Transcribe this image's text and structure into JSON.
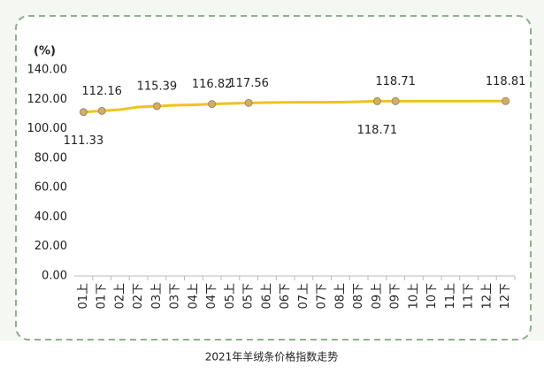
{
  "chart_data": {
    "type": "line",
    "caption": "2021年羊绒条价格指数走势",
    "y_label": "(%)",
    "categories": [
      "01上",
      "01下",
      "02上",
      "02下",
      "03上",
      "03下",
      "04上",
      "04下",
      "05上",
      "05下",
      "06上",
      "06下",
      "07上",
      "07下",
      "08上",
      "08下",
      "09上",
      "09下",
      "10上",
      "10下",
      "11上",
      "11下",
      "12上",
      "12下"
    ],
    "series": [
      {
        "name": "羊绒条价格指数",
        "color": "#f2c21b",
        "values": [
          111.33,
          112.16,
          113.0,
          114.8,
          115.39,
          116.0,
          116.3,
          116.82,
          117.2,
          117.56,
          117.8,
          117.9,
          118.0,
          118.0,
          118.1,
          118.4,
          118.71,
          118.71,
          118.75,
          118.75,
          118.78,
          118.78,
          118.8,
          118.81
        ],
        "value_labels": [
          "111.33",
          "112.16",
          null,
          null,
          "115.39",
          null,
          null,
          "116.82",
          null,
          "117.56",
          null,
          null,
          null,
          null,
          null,
          null,
          "118.71",
          "118.71",
          null,
          null,
          null,
          null,
          null,
          "118.81"
        ]
      }
    ],
    "ylim": [
      0,
      140
    ],
    "yticks": [
      {
        "value": 0,
        "label": "0.00"
      },
      {
        "value": 20,
        "label": "20.00"
      },
      {
        "value": 40,
        "label": "40.00"
      },
      {
        "value": 60,
        "label": "60.00"
      },
      {
        "value": 80,
        "label": "80.00"
      },
      {
        "value": 100,
        "label": "100.00"
      },
      {
        "value": 120,
        "label": "120.00"
      },
      {
        "value": 140,
        "label": "140.00"
      }
    ],
    "grid": false,
    "marker_color": "#d4ad62"
  }
}
